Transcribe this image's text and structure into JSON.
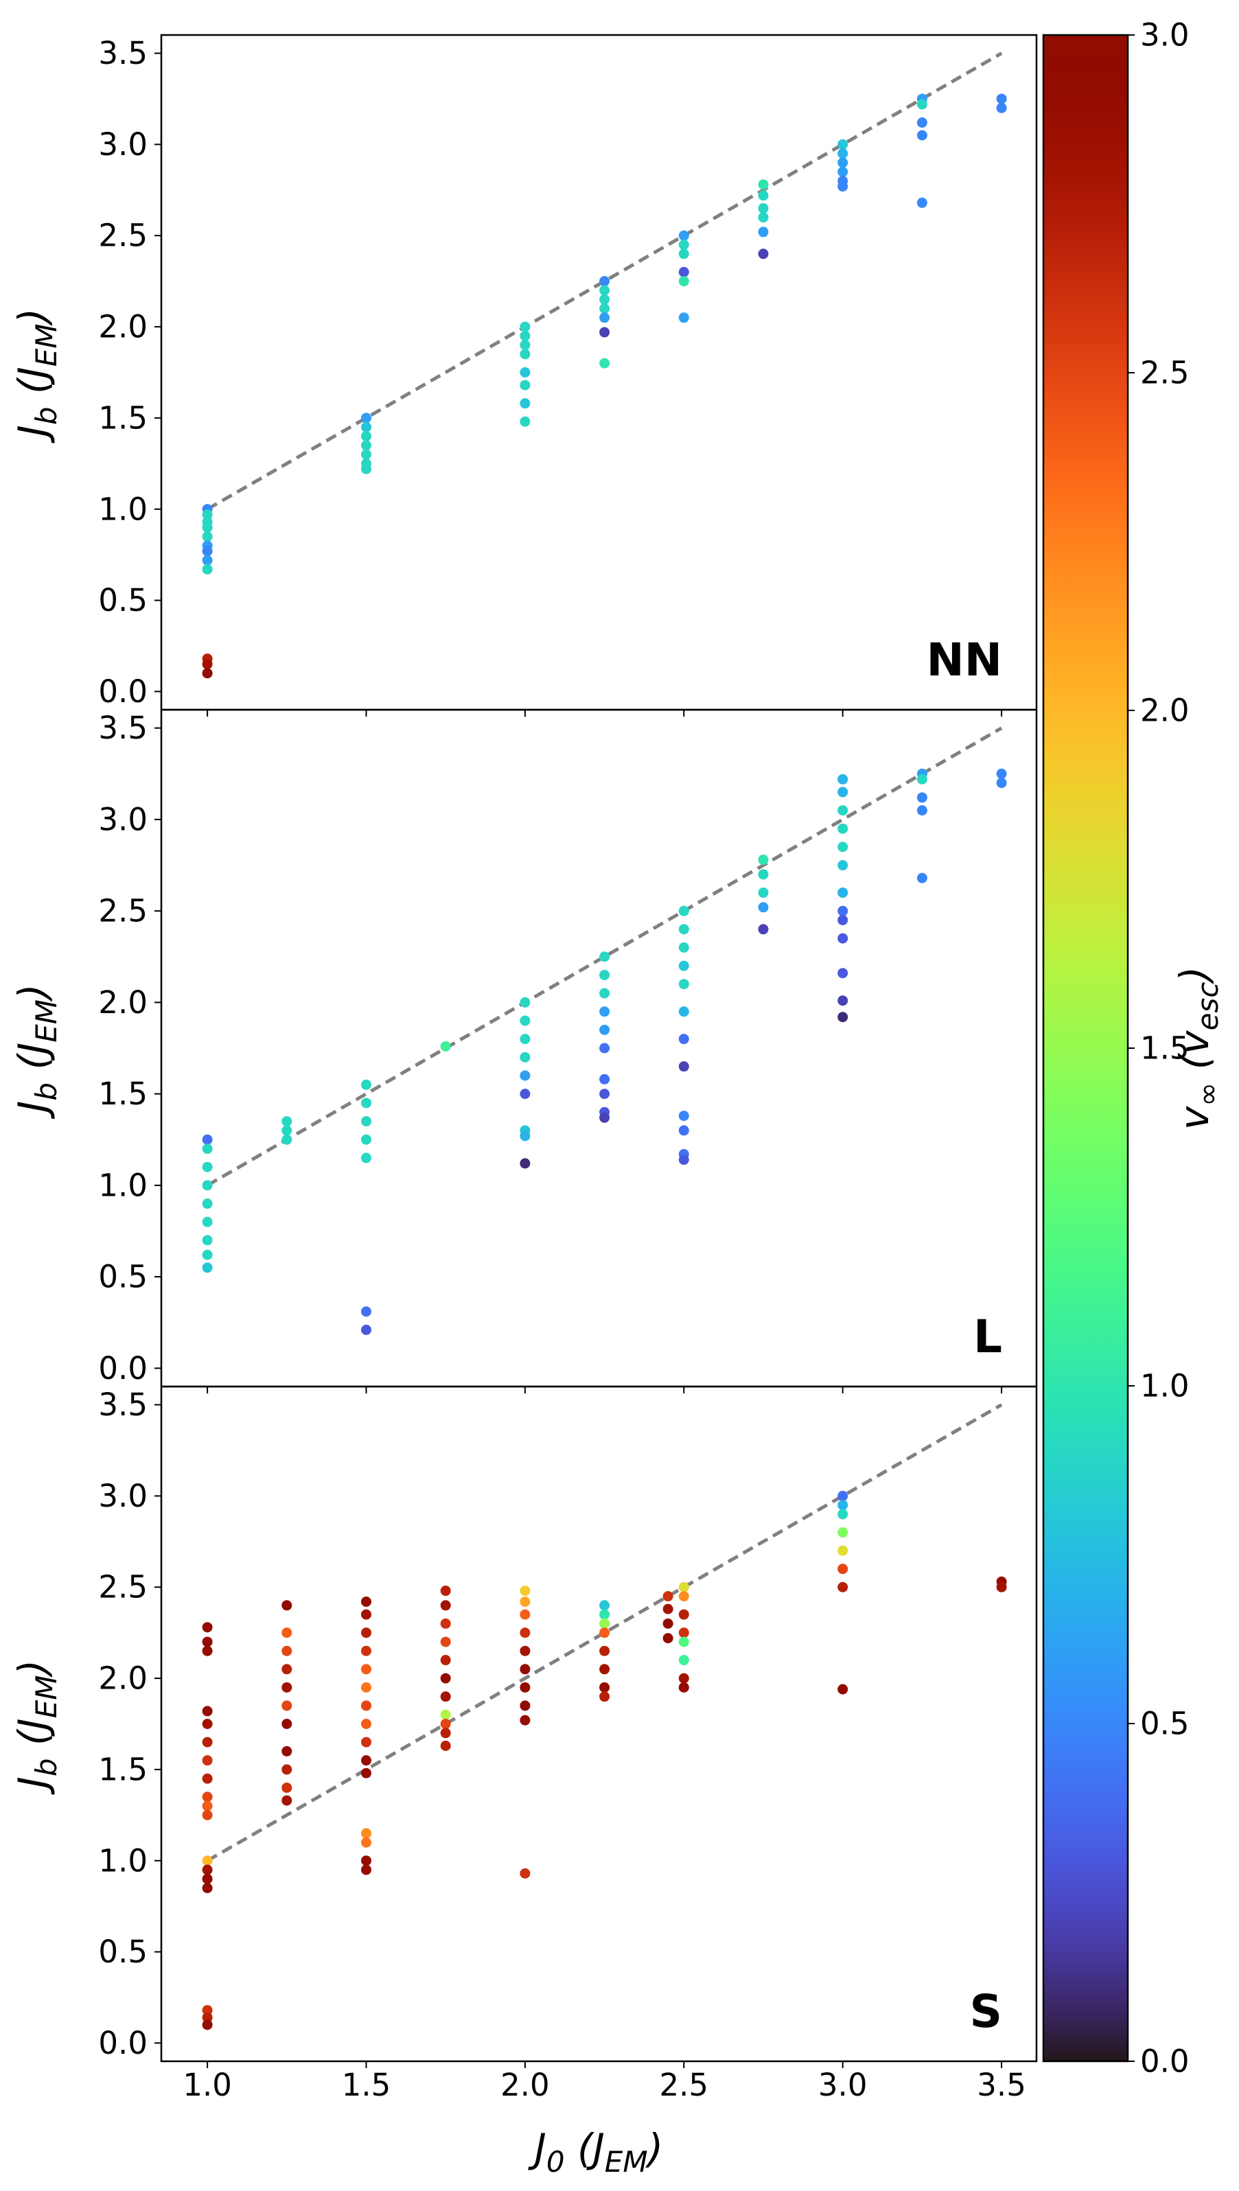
{
  "chart_data": [
    {
      "type": "scatter",
      "panel_label": "NN",
      "ylabel": [
        "J",
        "b",
        " (J",
        "EM",
        ")"
      ],
      "xlim": [
        0.855,
        3.61
      ],
      "ylim": [
        -0.1,
        3.6
      ],
      "xticks": [
        1,
        1.5,
        2,
        2.5,
        3,
        3.5
      ],
      "yticks": [
        {
          "value": 0,
          "label": "0.0"
        },
        0.5,
        {
          "value": 1,
          "label": "1.0"
        },
        1.5,
        {
          "value": 2,
          "label": "2.0"
        },
        2.5,
        {
          "value": 3,
          "label": "3.0"
        },
        3.5
      ],
      "reference_line": {
        "x": [
          1,
          3.5
        ],
        "y": [
          1,
          3.5
        ]
      },
      "x": [
        1,
        1,
        1,
        1,
        1,
        1,
        1,
        1,
        1,
        1,
        1,
        1,
        1.5,
        1.5,
        1.5,
        1.5,
        1.5,
        1.5,
        1.5,
        2,
        2,
        2,
        2,
        2,
        2,
        2,
        2,
        2.25,
        2.25,
        2.25,
        2.25,
        2.25,
        2.25,
        2.25,
        2.5,
        2.5,
        2.5,
        2.5,
        2.5,
        2.5,
        2.75,
        2.75,
        2.75,
        2.75,
        2.75,
        2.75,
        3,
        3,
        3,
        3,
        3,
        3,
        3.25,
        3.25,
        3.25,
        3.25,
        3.25,
        3.5,
        3.5
      ],
      "y": [
        1.0,
        0.97,
        0.93,
        0.9,
        0.85,
        0.8,
        0.77,
        0.72,
        0.67,
        0.18,
        0.15,
        0.1,
        1.5,
        1.45,
        1.4,
        1.35,
        1.3,
        1.25,
        1.22,
        2.0,
        1.95,
        1.9,
        1.85,
        1.75,
        1.68,
        1.58,
        1.48,
        2.25,
        2.2,
        2.15,
        2.1,
        2.05,
        1.97,
        1.8,
        2.5,
        2.45,
        2.4,
        2.3,
        2.25,
        2.05,
        2.78,
        2.72,
        2.65,
        2.6,
        2.52,
        2.4,
        3.0,
        2.95,
        2.9,
        2.85,
        2.8,
        2.77,
        3.25,
        3.22,
        3.12,
        3.05,
        2.68,
        3.25,
        3.2
      ],
      "c": [
        0.5,
        0.9,
        0.9,
        0.9,
        0.9,
        0.6,
        0.5,
        0.6,
        0.9,
        2.7,
        2.8,
        2.95,
        0.6,
        0.8,
        0.9,
        0.9,
        0.9,
        0.9,
        0.9,
        0.9,
        0.9,
        0.9,
        0.9,
        0.8,
        0.9,
        0.8,
        0.9,
        0.5,
        0.9,
        0.9,
        0.9,
        0.6,
        0.2,
        1.0,
        0.6,
        0.9,
        0.9,
        0.3,
        1.0,
        0.6,
        1.0,
        0.9,
        0.9,
        0.9,
        0.6,
        0.2,
        0.8,
        0.7,
        0.6,
        0.6,
        0.5,
        0.5,
        0.6,
        0.9,
        0.5,
        0.5,
        0.5,
        0.5,
        0.5
      ]
    },
    {
      "type": "scatter",
      "panel_label": "L",
      "ylabel": [
        "J",
        "b",
        " (J",
        "EM",
        ")"
      ],
      "xlim": [
        0.855,
        3.61
      ],
      "ylim": [
        -0.1,
        3.6
      ],
      "xticks": [
        1,
        1.5,
        2,
        2.5,
        3,
        3.5
      ],
      "yticks": [
        {
          "value": 0,
          "label": "0.0"
        },
        0.5,
        {
          "value": 1,
          "label": "1.0"
        },
        1.5,
        {
          "value": 2,
          "label": "2.0"
        },
        2.5,
        {
          "value": 3,
          "label": "3.0"
        },
        3.5
      ],
      "reference_line": {
        "x": [
          1,
          3.5
        ],
        "y": [
          1,
          3.5
        ]
      },
      "x": [
        1,
        1,
        1,
        1,
        1,
        1,
        1,
        1,
        1,
        1.25,
        1.25,
        1.25,
        1.5,
        1.5,
        1.5,
        1.5,
        1.5,
        1.5,
        1.5,
        1.75,
        2,
        2,
        2,
        2,
        2,
        2,
        2,
        2,
        2,
        2.25,
        2.25,
        2.25,
        2.25,
        2.25,
        2.25,
        2.25,
        2.25,
        2.25,
        2.25,
        2.5,
        2.5,
        2.5,
        2.5,
        2.5,
        2.5,
        2.5,
        2.5,
        2.5,
        2.5,
        2.5,
        2.5,
        2.75,
        2.75,
        2.75,
        2.75,
        2.75,
        3,
        3,
        3,
        3,
        3,
        3,
        3,
        3,
        3,
        3,
        3,
        3,
        3,
        3.25,
        3.25,
        3.25,
        3.25,
        3.25,
        3.5,
        3.5
      ],
      "y": [
        1.25,
        1.2,
        1.1,
        1.0,
        0.9,
        0.8,
        0.7,
        0.62,
        0.55,
        1.35,
        1.3,
        1.25,
        1.55,
        1.45,
        1.35,
        1.25,
        1.15,
        0.31,
        0.21,
        1.76,
        2.0,
        1.9,
        1.8,
        1.7,
        1.6,
        1.5,
        1.3,
        1.27,
        1.12,
        2.25,
        2.15,
        2.05,
        1.95,
        1.85,
        1.75,
        1.58,
        1.5,
        1.4,
        1.37,
        2.5,
        2.4,
        2.3,
        2.2,
        2.1,
        1.95,
        1.8,
        1.65,
        1.38,
        1.3,
        1.17,
        1.14,
        2.78,
        2.7,
        2.6,
        2.52,
        2.4,
        3.22,
        3.15,
        3.05,
        2.95,
        2.85,
        2.75,
        2.6,
        2.5,
        2.45,
        2.35,
        2.16,
        2.01,
        1.92,
        3.25,
        3.22,
        3.12,
        3.05,
        2.68,
        3.25,
        3.2
      ],
      "c": [
        0.4,
        0.9,
        0.9,
        0.9,
        0.9,
        0.9,
        0.9,
        0.9,
        0.8,
        0.9,
        0.9,
        0.9,
        0.9,
        0.9,
        0.9,
        0.9,
        0.9,
        0.4,
        0.3,
        1.1,
        0.9,
        0.9,
        0.9,
        0.9,
        0.6,
        0.3,
        0.8,
        0.7,
        0.1,
        0.9,
        0.9,
        0.9,
        0.6,
        0.6,
        0.4,
        0.4,
        0.3,
        0.3,
        0.2,
        0.9,
        0.9,
        0.9,
        0.8,
        0.9,
        0.7,
        0.4,
        0.2,
        0.5,
        0.4,
        0.4,
        0.3,
        1.0,
        0.9,
        0.9,
        0.6,
        0.2,
        0.7,
        0.7,
        0.9,
        0.9,
        0.9,
        0.8,
        0.7,
        0.4,
        0.3,
        0.3,
        0.3,
        0.2,
        0.1,
        0.6,
        0.9,
        0.5,
        0.5,
        0.5,
        0.5,
        0.5
      ]
    },
    {
      "type": "scatter",
      "panel_label": "S",
      "ylabel": [
        "J",
        "b",
        " (J",
        "EM",
        ")"
      ],
      "xlabel": [
        "J",
        "0",
        " (J",
        "EM",
        ")"
      ],
      "xlim": [
        0.855,
        3.61
      ],
      "ylim": [
        -0.1,
        3.6
      ],
      "xticks": [
        {
          "value": 1,
          "label": "1.0"
        },
        1.5,
        {
          "value": 2,
          "label": "2.0"
        },
        2.5,
        {
          "value": 3,
          "label": "3.0"
        },
        3.5
      ],
      "yticks": [
        {
          "value": 0,
          "label": "0.0"
        },
        0.5,
        {
          "value": 1,
          "label": "1.0"
        },
        1.5,
        {
          "value": 2,
          "label": "2.0"
        },
        2.5,
        {
          "value": 3,
          "label": "3.0"
        },
        3.5
      ],
      "reference_line": {
        "x": [
          1,
          3.5
        ],
        "y": [
          1,
          3.5
        ]
      },
      "x": [
        1,
        1,
        1,
        1,
        1,
        1,
        1,
        1,
        1,
        1,
        1,
        1,
        1,
        1,
        1,
        1,
        1,
        1,
        1.25,
        1.25,
        1.25,
        1.25,
        1.25,
        1.25,
        1.25,
        1.25,
        1.25,
        1.25,
        1.25,
        1.5,
        1.5,
        1.5,
        1.5,
        1.5,
        1.5,
        1.5,
        1.5,
        1.5,
        1.5,
        1.5,
        1.5,
        1.5,
        1.5,
        1.5,
        1.75,
        1.75,
        1.75,
        1.75,
        1.75,
        1.75,
        1.75,
        1.75,
        1.75,
        1.75,
        1.75,
        2,
        2,
        2,
        2,
        2,
        2,
        2,
        2,
        2,
        2,
        2.25,
        2.25,
        2.25,
        2.25,
        2.25,
        2.25,
        2.25,
        2.25,
        2.45,
        2.45,
        2.45,
        2.45,
        2.5,
        2.5,
        2.5,
        2.5,
        2.5,
        2.5,
        2.5,
        2.5,
        3,
        3,
        3,
        3,
        3,
        3,
        3,
        3,
        3.5,
        3.5
      ],
      "y": [
        2.28,
        2.2,
        2.15,
        1.82,
        1.75,
        1.65,
        1.55,
        1.45,
        1.35,
        1.3,
        1.25,
        1.0,
        0.95,
        0.9,
        0.85,
        0.18,
        0.14,
        0.1,
        2.4,
        2.25,
        2.15,
        2.05,
        1.95,
        1.85,
        1.75,
        1.6,
        1.5,
        1.4,
        1.33,
        2.42,
        2.35,
        2.25,
        2.15,
        2.05,
        1.95,
        1.85,
        1.75,
        1.65,
        1.55,
        1.48,
        1.15,
        1.1,
        1.0,
        0.95,
        2.48,
        2.4,
        2.3,
        2.2,
        2.1,
        2.0,
        1.9,
        1.8,
        1.75,
        1.7,
        1.63,
        2.48,
        2.42,
        2.35,
        2.25,
        2.15,
        2.05,
        1.95,
        1.85,
        1.77,
        0.93,
        2.4,
        2.35,
        2.3,
        2.25,
        2.15,
        2.05,
        1.95,
        1.9,
        2.45,
        2.38,
        2.3,
        2.22,
        2.5,
        2.45,
        2.35,
        2.25,
        2.2,
        2.1,
        2.0,
        1.95,
        3.0,
        2.95,
        2.9,
        2.8,
        2.7,
        2.6,
        2.5,
        1.94,
        2.53,
        2.5
      ],
      "c": [
        2.9,
        2.95,
        2.9,
        2.9,
        2.8,
        2.7,
        2.6,
        2.7,
        2.5,
        2.4,
        2.5,
        2.0,
        2.8,
        2.9,
        2.95,
        2.6,
        2.7,
        2.9,
        2.95,
        2.4,
        2.5,
        2.7,
        2.8,
        2.5,
        2.9,
        2.9,
        2.7,
        2.6,
        2.8,
        2.9,
        2.8,
        2.7,
        2.6,
        2.4,
        2.3,
        2.5,
        2.4,
        2.6,
        2.9,
        2.9,
        2.2,
        2.3,
        2.9,
        2.9,
        2.7,
        2.8,
        2.6,
        2.5,
        2.7,
        2.9,
        2.8,
        1.6,
        2.5,
        2.7,
        2.7,
        1.9,
        2.1,
        2.4,
        2.6,
        2.8,
        2.9,
        2.9,
        2.95,
        2.9,
        2.6,
        0.8,
        1.0,
        1.5,
        2.4,
        2.7,
        2.8,
        2.9,
        2.7,
        2.6,
        2.8,
        2.9,
        2.9,
        1.8,
        2.2,
        2.7,
        2.6,
        1.2,
        1.1,
        2.8,
        2.9,
        0.4,
        0.7,
        0.9,
        1.4,
        1.8,
        2.5,
        2.7,
        2.95,
        2.9,
        2.8
      ]
    }
  ],
  "colorbar": {
    "colormap": "turbo",
    "clim": [
      0,
      3
    ],
    "ticks": [
      {
        "value": 0,
        "label": "0.0"
      },
      0.5,
      {
        "value": 1,
        "label": "1.0"
      },
      1.5,
      {
        "value": 2,
        "label": "2.0"
      },
      2.5,
      {
        "value": 3,
        "label": "3.0"
      }
    ],
    "label": [
      "v",
      "∞",
      " (v",
      "esc",
      ")"
    ]
  }
}
